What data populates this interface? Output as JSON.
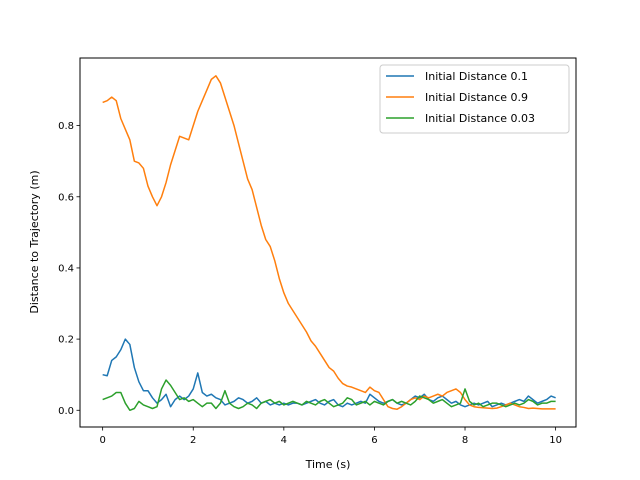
{
  "chart_data": {
    "type": "line",
    "title": "",
    "xlabel": "Time (s)",
    "ylabel": "Distance to Trajectory (m)",
    "xlim": [
      -0.5,
      10.45
    ],
    "ylim": [
      -0.047,
      0.99
    ],
    "xticks": [
      0,
      2,
      4,
      6,
      8,
      10
    ],
    "yticks": [
      0.0,
      0.2,
      0.4,
      0.6,
      0.8
    ],
    "xtick_labels": [
      "0",
      "2",
      "4",
      "6",
      "8",
      "10"
    ],
    "ytick_labels": [
      "0.0",
      "0.2",
      "0.4",
      "0.6",
      "0.8"
    ],
    "grid": false,
    "legend_position": "top-right",
    "series": [
      {
        "name": "Initial Distance 0.1",
        "color": "#1f77b4",
        "x": [
          0,
          0.1,
          0.2,
          0.3,
          0.4,
          0.5,
          0.6,
          0.7,
          0.8,
          0.9,
          1.0,
          1.1,
          1.2,
          1.3,
          1.4,
          1.5,
          1.6,
          1.7,
          1.8,
          1.9,
          2.0,
          2.1,
          2.2,
          2.3,
          2.4,
          2.5,
          2.6,
          2.7,
          2.8,
          2.9,
          3.0,
          3.1,
          3.2,
          3.3,
          3.4,
          3.5,
          3.6,
          3.7,
          3.8,
          3.9,
          4.0,
          4.1,
          4.2,
          4.3,
          4.4,
          4.5,
          4.6,
          4.7,
          4.8,
          4.9,
          5.0,
          5.1,
          5.2,
          5.3,
          5.4,
          5.5,
          5.6,
          5.7,
          5.8,
          5.9,
          6.0,
          6.1,
          6.2,
          6.3,
          6.4,
          6.5,
          6.6,
          6.7,
          6.8,
          6.9,
          7.0,
          7.1,
          7.2,
          7.3,
          7.4,
          7.5,
          7.6,
          7.7,
          7.8,
          7.9,
          8.0,
          8.1,
          8.2,
          8.3,
          8.4,
          8.5,
          8.6,
          8.7,
          8.8,
          8.9,
          9.0,
          9.1,
          9.2,
          9.3,
          9.4,
          9.5,
          9.6,
          9.7,
          9.8,
          9.9,
          10.0
        ],
        "y": [
          0.1,
          0.097,
          0.14,
          0.15,
          0.17,
          0.2,
          0.185,
          0.12,
          0.08,
          0.055,
          0.055,
          0.035,
          0.02,
          0.03,
          0.045,
          0.01,
          0.03,
          0.04,
          0.03,
          0.04,
          0.06,
          0.105,
          0.05,
          0.04,
          0.045,
          0.035,
          0.03,
          0.015,
          0.02,
          0.025,
          0.035,
          0.03,
          0.02,
          0.025,
          0.035,
          0.02,
          0.025,
          0.015,
          0.02,
          0.015,
          0.02,
          0.015,
          0.02,
          0.02,
          0.015,
          0.02,
          0.025,
          0.03,
          0.02,
          0.015,
          0.025,
          0.03,
          0.015,
          0.01,
          0.02,
          0.015,
          0.02,
          0.025,
          0.02,
          0.045,
          0.035,
          0.025,
          0.02,
          0.025,
          0.03,
          0.02,
          0.015,
          0.02,
          0.03,
          0.04,
          0.035,
          0.045,
          0.03,
          0.025,
          0.035,
          0.04,
          0.03,
          0.02,
          0.025,
          0.015,
          0.01,
          0.015,
          0.02,
          0.015,
          0.02,
          0.025,
          0.01,
          0.015,
          0.02,
          0.015,
          0.02,
          0.025,
          0.03,
          0.025,
          0.04,
          0.03,
          0.02,
          0.025,
          0.03,
          0.04,
          0.035
        ]
      },
      {
        "name": "Initial Distance 0.9",
        "color": "#ff7f0e",
        "x": [
          0,
          0.1,
          0.2,
          0.3,
          0.4,
          0.5,
          0.6,
          0.7,
          0.8,
          0.9,
          1.0,
          1.1,
          1.2,
          1.3,
          1.4,
          1.5,
          1.6,
          1.7,
          1.8,
          1.9,
          2.0,
          2.1,
          2.2,
          2.3,
          2.4,
          2.5,
          2.6,
          2.7,
          2.8,
          2.9,
          3.0,
          3.1,
          3.2,
          3.3,
          3.4,
          3.5,
          3.6,
          3.7,
          3.8,
          3.9,
          4.0,
          4.1,
          4.2,
          4.3,
          4.4,
          4.5,
          4.6,
          4.7,
          4.8,
          4.9,
          5.0,
          5.1,
          5.2,
          5.3,
          5.4,
          5.5,
          5.6,
          5.7,
          5.8,
          5.9,
          6.0,
          6.1,
          6.2,
          6.3,
          6.4,
          6.5,
          6.6,
          6.7,
          6.8,
          6.9,
          7.0,
          7.1,
          7.2,
          7.3,
          7.4,
          7.5,
          7.6,
          7.7,
          7.8,
          7.9,
          8.0,
          8.1,
          8.2,
          8.3,
          8.4,
          8.5,
          8.6,
          8.7,
          8.8,
          8.9,
          9.0,
          9.1,
          9.2,
          9.3,
          9.4,
          9.5,
          9.6,
          9.7,
          9.8,
          9.9,
          10.0
        ],
        "y": [
          0.865,
          0.87,
          0.88,
          0.87,
          0.82,
          0.79,
          0.76,
          0.7,
          0.695,
          0.68,
          0.63,
          0.6,
          0.575,
          0.6,
          0.64,
          0.69,
          0.73,
          0.77,
          0.765,
          0.76,
          0.8,
          0.84,
          0.87,
          0.9,
          0.93,
          0.94,
          0.92,
          0.88,
          0.84,
          0.8,
          0.75,
          0.7,
          0.65,
          0.62,
          0.57,
          0.52,
          0.48,
          0.46,
          0.42,
          0.37,
          0.33,
          0.3,
          0.28,
          0.26,
          0.24,
          0.22,
          0.195,
          0.18,
          0.16,
          0.14,
          0.12,
          0.11,
          0.09,
          0.075,
          0.068,
          0.065,
          0.06,
          0.055,
          0.05,
          0.065,
          0.055,
          0.05,
          0.03,
          0.01,
          0.005,
          0.003,
          0.01,
          0.02,
          0.03,
          0.035,
          0.03,
          0.04,
          0.035,
          0.04,
          0.045,
          0.04,
          0.05,
          0.055,
          0.06,
          0.05,
          0.03,
          0.015,
          0.01,
          0.008,
          0.007,
          0.006,
          0.005,
          0.006,
          0.01,
          0.015,
          0.02,
          0.015,
          0.01,
          0.008,
          0.005,
          0.006,
          0.005,
          0.004,
          0.004,
          0.004,
          0.004
        ]
      },
      {
        "name": "Initial Distance 0.03",
        "color": "#2ca02c",
        "x": [
          0,
          0.1,
          0.2,
          0.3,
          0.4,
          0.5,
          0.6,
          0.7,
          0.8,
          0.9,
          1.0,
          1.1,
          1.2,
          1.3,
          1.4,
          1.5,
          1.6,
          1.7,
          1.8,
          1.9,
          2.0,
          2.1,
          2.2,
          2.3,
          2.4,
          2.5,
          2.6,
          2.7,
          2.8,
          2.9,
          3.0,
          3.1,
          3.2,
          3.3,
          3.4,
          3.5,
          3.6,
          3.7,
          3.8,
          3.9,
          4.0,
          4.1,
          4.2,
          4.3,
          4.4,
          4.5,
          4.6,
          4.7,
          4.8,
          4.9,
          5.0,
          5.1,
          5.2,
          5.3,
          5.4,
          5.5,
          5.6,
          5.7,
          5.8,
          5.9,
          6.0,
          6.1,
          6.2,
          6.3,
          6.4,
          6.5,
          6.6,
          6.7,
          6.8,
          6.9,
          7.0,
          7.1,
          7.2,
          7.3,
          7.4,
          7.5,
          7.6,
          7.7,
          7.8,
          7.9,
          8.0,
          8.1,
          8.2,
          8.3,
          8.4,
          8.5,
          8.6,
          8.7,
          8.8,
          8.9,
          9.0,
          9.1,
          9.2,
          9.3,
          9.4,
          9.5,
          9.6,
          9.7,
          9.8,
          9.9,
          10.0
        ],
        "y": [
          0.03,
          0.035,
          0.04,
          0.05,
          0.05,
          0.02,
          0.0,
          0.005,
          0.025,
          0.015,
          0.01,
          0.005,
          0.01,
          0.06,
          0.085,
          0.07,
          0.05,
          0.03,
          0.035,
          0.025,
          0.03,
          0.02,
          0.01,
          0.02,
          0.02,
          0.005,
          0.02,
          0.055,
          0.02,
          0.01,
          0.005,
          0.01,
          0.02,
          0.015,
          0.005,
          0.02,
          0.025,
          0.03,
          0.02,
          0.025,
          0.015,
          0.02,
          0.025,
          0.02,
          0.015,
          0.025,
          0.02,
          0.015,
          0.025,
          0.03,
          0.02,
          0.01,
          0.015,
          0.02,
          0.035,
          0.03,
          0.015,
          0.02,
          0.025,
          0.015,
          0.025,
          0.02,
          0.015,
          0.025,
          0.03,
          0.02,
          0.025,
          0.02,
          0.015,
          0.025,
          0.04,
          0.035,
          0.03,
          0.02,
          0.025,
          0.03,
          0.02,
          0.01,
          0.015,
          0.02,
          0.06,
          0.025,
          0.015,
          0.02,
          0.01,
          0.015,
          0.02,
          0.02,
          0.015,
          0.01,
          0.015,
          0.02,
          0.015,
          0.02,
          0.03,
          0.025,
          0.015,
          0.02,
          0.02,
          0.025,
          0.025
        ]
      }
    ]
  }
}
